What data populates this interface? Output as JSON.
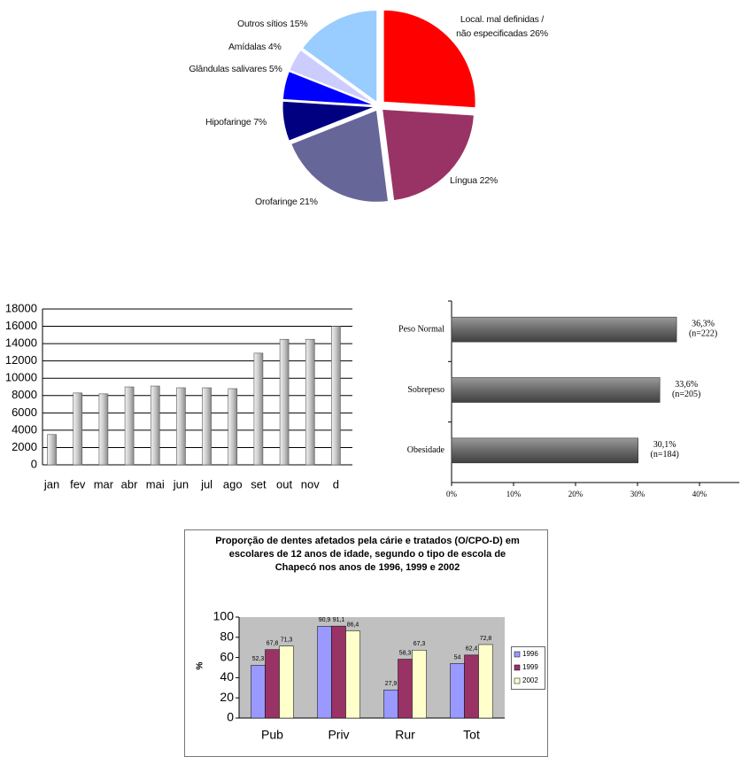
{
  "chart_data": [
    {
      "type": "pie",
      "categories": [
        "Local. mal definidas / não especificadas",
        "Língua",
        "Orofaringe",
        "Hipofaringe",
        "Glândulas salivares",
        "Amídalas",
        "Outros sítios"
      ],
      "values": [
        26,
        22,
        21,
        7,
        5,
        4,
        15
      ],
      "value_labels": [
        "26%",
        "22%",
        "21%",
        "7%",
        "5%",
        "4%",
        "15%"
      ],
      "colors": [
        "#ff0000",
        "#993366",
        "#666699",
        "#000080",
        "#0000ff",
        "#ccccff",
        "#99ccff"
      ]
    },
    {
      "type": "bar",
      "categories": [
        "jan",
        "fev",
        "mar",
        "abr",
        "mai",
        "jun",
        "jul",
        "ago",
        "set",
        "out",
        "nov",
        "d"
      ],
      "values": [
        3500,
        8300,
        8200,
        9000,
        9100,
        8900,
        8900,
        8800,
        12900,
        14500,
        14500,
        16000
      ],
      "color": "#c0c0c0",
      "ylim": [
        0,
        18000
      ],
      "yticks": [
        0,
        2000,
        4000,
        6000,
        8000,
        10000,
        12000,
        14000,
        16000,
        18000
      ],
      "grid": true
    },
    {
      "type": "hbar",
      "categories": [
        "Peso Normal",
        "Sobrepeso",
        "Obesidade"
      ],
      "values": [
        36.3,
        33.6,
        30.1
      ],
      "value_labels": [
        "36,3%",
        "33,6%",
        "30,1%"
      ],
      "annotations": [
        "(n=222)",
        "(n=205)",
        "(n=184)"
      ],
      "color": "#707070",
      "xlim": [
        0,
        46
      ],
      "xticks": [
        {
          "value": 0,
          "label": "0%"
        },
        {
          "value": 10,
          "label": "10%"
        },
        {
          "value": 20,
          "label": "20%"
        },
        {
          "value": 30,
          "label": "30%"
        },
        {
          "value": 40,
          "label": "40%"
        }
      ]
    },
    {
      "type": "grouped_bar",
      "title": "Proporção de dentes afetados pela cárie e tratados (O/CPO-D) em escolares de 12 anos de idade, segundo o tipo de escola de Chapecó nos anos de 1996, 1999 e 2002",
      "y_label": "%",
      "categories": [
        "Pub",
        "Priv",
        "Rur",
        "Tot"
      ],
      "series": [
        {
          "name": "1996",
          "color": "#9999ff",
          "values": [
            52.3,
            90.9,
            27.9,
            54
          ],
          "value_labels": [
            "52,3",
            "90,9",
            "27,9",
            "54"
          ]
        },
        {
          "name": "1999",
          "color": "#993366",
          "values": [
            67.8,
            91.1,
            58.3,
            62.4
          ],
          "value_labels": [
            "67,8",
            "91,1",
            "58,3",
            "62,4"
          ]
        },
        {
          "name": "2002",
          "color": "#ffffcc",
          "values": [
            71.3,
            86.4,
            67.3,
            72.8
          ],
          "value_labels": [
            "71,3",
            "86,4",
            "67,3",
            "72,8"
          ]
        }
      ],
      "ylim": [
        0,
        100
      ],
      "yticks": [
        0,
        20,
        40,
        60,
        80,
        100
      ],
      "plot_background": "#c0c0c0"
    }
  ]
}
